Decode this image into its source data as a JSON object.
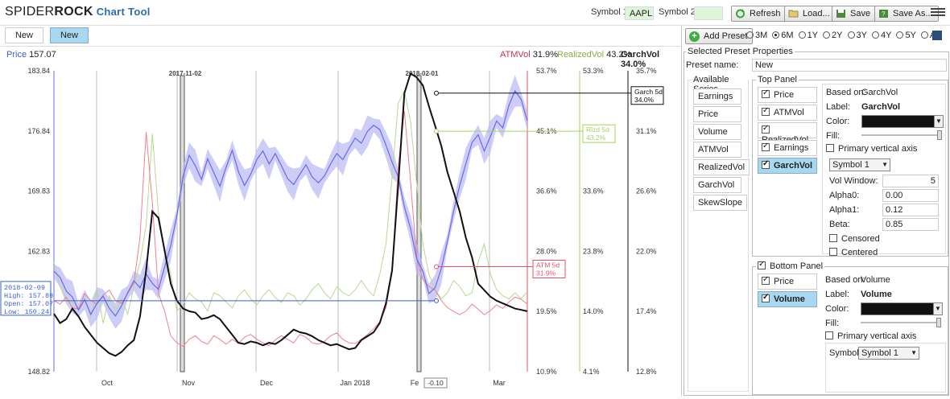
{
  "header": {
    "brand_a": "SPIDER",
    "brand_b": "ROCK",
    "brand_c": "Chart Tool",
    "symbol1_label": "Symbol 1:",
    "symbol1_value": "AAPL",
    "symbol2_label": "Symbol 2:",
    "symbol2_value": "",
    "refresh": "Refresh",
    "load": "Load...",
    "save": "Save",
    "save_as": "Save As..."
  },
  "tabs": [
    {
      "label": "New"
    },
    {
      "label": "New"
    }
  ],
  "info": {
    "price_label": "Price",
    "price_value": "157.07",
    "atm_label": "ATMVol",
    "atm_value": "31.9%",
    "realized_label": "RealizedVol",
    "realized_value": "43.2%",
    "garch_label": "GarchVol",
    "garch_value": "34.0%"
  },
  "colors": {
    "price": "#6a6ae8",
    "atm": "#e8506a",
    "realized": "#a8d060",
    "garch": "#111111",
    "selected": "#a8d8f0"
  },
  "chart_data": {
    "type": "line",
    "x_ticks": [
      "Oct",
      "Nov",
      "Dec",
      "Jan 2018",
      "Fe",
      "Mar"
    ],
    "annotations": [
      "2017-11-02",
      "2018-02-01"
    ],
    "axes": {
      "price": {
        "ticks": [
          "183.84",
          "176.84",
          "169.83",
          "162.83",
          "148.82"
        ],
        "range": [
          148.82,
          183.84
        ]
      },
      "atm": {
        "ticks": [
          "53.7%",
          "45.1%",
          "36.6%",
          "28.0%",
          "19.5%",
          "10.9%"
        ],
        "range": [
          10.9,
          53.7
        ]
      },
      "realized": {
        "ticks": [
          "53.3%",
          "33.6%",
          "23.8%",
          "14.0%",
          "4.1%"
        ],
        "range": [
          4.1,
          53.3
        ]
      },
      "garch": {
        "ticks": [
          "35.7%",
          "31.1%",
          "26.6%",
          "22.0%",
          "17.4%",
          "12.8%"
        ],
        "range": [
          12.8,
          35.7
        ]
      }
    },
    "tooltip": {
      "date": "2018-02-09",
      "high_label": "High:",
      "high": "157.89",
      "open_label": "Open:",
      "open": "157.07",
      "low_label": "Low:",
      "low": "150.24"
    },
    "flags": [
      {
        "name": "Garch 5d",
        "value": "34.0%"
      },
      {
        "name": "Rlzd 5d",
        "value": "43.2%"
      },
      {
        "name": "ATM 5d",
        "value": "31.9%"
      }
    ],
    "cursor_label": "-0.10",
    "series": [
      {
        "name": "Price",
        "values": [
          160.5,
          159.8,
          158.2,
          157.5,
          156.0,
          157.2,
          155.5,
          156.8,
          157.6,
          156.2,
          155.3,
          156.5,
          158.0,
          159.4,
          158.6,
          160.2,
          159.1,
          158.4,
          161.0,
          163.5,
          167.0,
          171.5,
          174.0,
          172.8,
          171.2,
          173.6,
          172.0,
          170.4,
          172.6,
          174.6,
          172.1,
          170.5,
          171.8,
          173.5,
          174.5,
          173.0,
          174.2,
          172.8,
          171.3,
          170.6,
          171.8,
          172.9,
          171.5,
          170.8,
          171.6,
          173.0,
          174.2,
          173.5,
          174.8,
          176.0,
          175.4,
          176.8,
          177.5,
          177.0,
          175.2,
          173.2,
          171.5,
          168.0,
          165.5,
          162.0,
          160.5,
          157.9,
          158.6,
          160.8,
          164.0,
          167.5,
          170.5,
          173.0,
          175.5,
          176.4,
          174.5,
          176.2,
          178.0,
          177.2,
          179.8,
          181.5,
          180.5,
          178.0
        ]
      },
      {
        "name": "ATMVol",
        "values": [
          21.0,
          20.5,
          21.5,
          20.0,
          19.8,
          22.0,
          21.0,
          20.5,
          21.8,
          22.5,
          21.0,
          20.6,
          22.0,
          23.5,
          30.0,
          45.0,
          35.0,
          22.0,
          19.5,
          16.0,
          15.0,
          14.5,
          15.5,
          16.0,
          15.2,
          14.8,
          16.0,
          15.5,
          14.8,
          15.5,
          14.9,
          15.8,
          16.2,
          15.5,
          15.0,
          14.6,
          15.4,
          16.0,
          15.5,
          15.0,
          16.2,
          15.8,
          15.0,
          14.8,
          15.2,
          16.0,
          16.4,
          15.5,
          15.0,
          14.9,
          15.5,
          16.2,
          17.0,
          18.0,
          20.0,
          25.0,
          40.0,
          48.0,
          38.0,
          27.0,
          24.0,
          23.0,
          22.5,
          21.0,
          20.0,
          19.5,
          19.0,
          19.5,
          20.5,
          19.8,
          19.0,
          19.6,
          20.4,
          19.9,
          20.8,
          21.5,
          21.2,
          20.5
        ]
      },
      {
        "name": "RealizedVol",
        "values": [
          22.0,
          18.0,
          16.0,
          15.5,
          14.5,
          16.0,
          13.0,
          17.5,
          12.0,
          16.5,
          14.0,
          16.0,
          13.5,
          18.0,
          22.0,
          28.0,
          43.0,
          30.0,
          24.0,
          20.0,
          14.0,
          15.0,
          17.0,
          16.0,
          15.5,
          14.0,
          17.0,
          16.5,
          15.5,
          14.5,
          16.5,
          17.5,
          16.0,
          15.0,
          16.5,
          17.5,
          16.2,
          15.4,
          17.0,
          16.5,
          15.0,
          16.0,
          17.5,
          18.5,
          17.0,
          16.0,
          18.0,
          17.0,
          16.5,
          17.5,
          19.0,
          17.5,
          16.5,
          20.0,
          25.0,
          36.0,
          48.0,
          50.0,
          45.0,
          35.0,
          25.0,
          20.0,
          17.5,
          16.0,
          17.0,
          19.0,
          18.0,
          16.5,
          17.0,
          22.0,
          25.0,
          20.0,
          17.5,
          16.5,
          16.0,
          17.0,
          16.0,
          17.2
        ]
      },
      {
        "name": "GarchVol",
        "values": [
          17.2,
          16.5,
          16.8,
          17.6,
          17.0,
          16.2,
          15.6,
          15.0,
          14.6,
          14.2,
          14.0,
          14.3,
          14.8,
          15.2,
          17.0,
          20.5,
          25.0,
          24.5,
          22.0,
          19.5,
          18.2,
          17.6,
          17.4,
          17.3,
          16.8,
          16.9,
          17.1,
          16.8,
          16.2,
          15.6,
          15.0,
          14.9,
          15.1,
          15.0,
          14.8,
          15.0,
          14.9,
          15.2,
          15.6,
          16.0,
          15.8,
          15.7,
          15.5,
          15.2,
          15.0,
          14.8,
          14.9,
          14.7,
          14.5,
          14.6,
          15.2,
          15.5,
          15.8,
          16.5,
          18.0,
          20.5,
          27.0,
          34.0,
          35.5,
          35.2,
          34.6,
          33.0,
          31.5,
          30.0,
          28.0,
          26.5,
          25.0,
          23.0,
          21.5,
          19.5,
          19.0,
          18.5,
          18.2,
          18.0,
          17.8,
          17.6,
          17.5,
          17.4
        ]
      }
    ]
  },
  "panel": {
    "add_preset": "Add Preset",
    "ranges": [
      {
        "label": "3M",
        "on": false
      },
      {
        "label": "6M",
        "on": true
      },
      {
        "label": "1Y",
        "on": false
      },
      {
        "label": "2Y",
        "on": false
      },
      {
        "label": "3Y",
        "on": false
      },
      {
        "label": "4Y",
        "on": false
      },
      {
        "label": "5Y",
        "on": false
      },
      {
        "label": "All",
        "on": false
      }
    ],
    "selected_props": "Selected Preset Properties",
    "preset_name_label": "Preset name:",
    "preset_name": "New",
    "available_series": "Available Series",
    "series": [
      "Earnings",
      "Price",
      "Volume",
      "ATMVol",
      "RealizedVol",
      "GarchVol",
      "SkewSlope"
    ],
    "top_panel": "Top Panel",
    "top_items": [
      {
        "label": "Price",
        "sel": false
      },
      {
        "label": "ATMVol",
        "sel": false
      },
      {
        "label": "RealizedVol",
        "sel": false
      },
      {
        "label": "Earnings",
        "sel": false
      },
      {
        "label": "GarchVol",
        "sel": true
      }
    ],
    "based_on_label": "Based on:",
    "top_based_on": "GarchVol",
    "label_label": "Label:",
    "top_label": "GarchVol",
    "color_label": "Color:",
    "fill_label": "Fill:",
    "primary_axis": "Primary vertical axis",
    "top_symbol": "Symbol 1",
    "vol_window_label": "Vol Window:",
    "vol_window": "5",
    "alpha0_label": "Alpha0:",
    "alpha0": "0.00",
    "alpha1_label": "Alpha1:",
    "alpha1": "0.12",
    "beta_label": "Beta:",
    "beta": "0.85",
    "censored": "Censored",
    "centered": "Centered",
    "bottom_panel": "Bottom Panel",
    "bottom_items": [
      {
        "label": "Price",
        "sel": false
      },
      {
        "label": "Volume",
        "sel": true
      }
    ],
    "bottom_based_on": "Volume",
    "bottom_label": "Volume",
    "symbol_label": "Symbol:",
    "bottom_symbol": "Symbol 1"
  }
}
